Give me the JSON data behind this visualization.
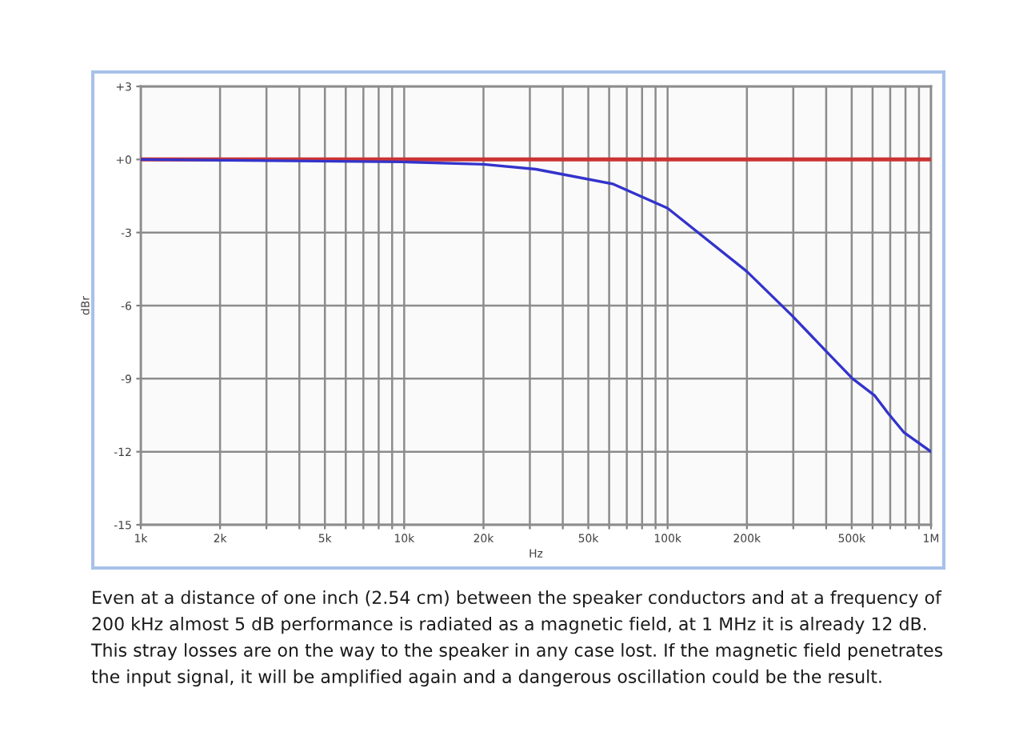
{
  "chart_data": {
    "type": "line",
    "xlabel": "Hz",
    "ylabel": "dBr",
    "log": "x",
    "grid": true,
    "line_style": "solid",
    "xlim": [
      1000,
      1000000
    ],
    "ylim": [
      -15,
      3
    ],
    "xticks": [
      {
        "value": 1000,
        "label": "1k"
      },
      {
        "value": 2000,
        "label": "2k"
      },
      {
        "value": 3000,
        "label": null
      },
      {
        "value": 4000,
        "label": null
      },
      {
        "value": 5000,
        "label": "5k"
      },
      {
        "value": 6000,
        "label": null
      },
      {
        "value": 7000,
        "label": null
      },
      {
        "value": 8000,
        "label": null
      },
      {
        "value": 9000,
        "label": null
      },
      {
        "value": 10000,
        "label": "10k"
      },
      {
        "value": 20000,
        "label": "20k"
      },
      {
        "value": 30000,
        "label": null
      },
      {
        "value": 40000,
        "label": null
      },
      {
        "value": 50000,
        "label": "50k"
      },
      {
        "value": 60000,
        "label": null
      },
      {
        "value": 70000,
        "label": null
      },
      {
        "value": 80000,
        "label": null
      },
      {
        "value": 90000,
        "label": null
      },
      {
        "value": 100000,
        "label": "100k"
      },
      {
        "value": 200000,
        "label": "200k"
      },
      {
        "value": 300000,
        "label": null
      },
      {
        "value": 400000,
        "label": null
      },
      {
        "value": 500000,
        "label": "500k"
      },
      {
        "value": 600000,
        "label": null
      },
      {
        "value": 700000,
        "label": null
      },
      {
        "value": 800000,
        "label": null
      },
      {
        "value": 900000,
        "label": null
      },
      {
        "value": 1000000,
        "label": "1M"
      }
    ],
    "yticks": [
      {
        "value": 3,
        "label": "+3"
      },
      {
        "value": 0,
        "label": "+0"
      },
      -3,
      -6,
      -9,
      -12,
      -15
    ],
    "series": [
      {
        "color": "#cc3333",
        "x": [
          1000,
          1000000
        ],
        "values": [
          0,
          0
        ]
      },
      {
        "color": "#3333cc",
        "x": [
          1000,
          10000,
          20000,
          31600,
          61800,
          100000,
          200000,
          296000,
          402000,
          504000,
          612000,
          685000,
          788000,
          1000000
        ],
        "values": [
          0,
          -0.1,
          -0.2,
          -0.4,
          -1.0,
          -2.0,
          -4.6,
          -6.4,
          -7.9,
          -9.0,
          -9.7,
          -10.4,
          -11.2,
          -12.0
        ]
      }
    ],
    "annotations": [
      "Even at a distance of one inch (2.54 cm) between the speaker conductors and at a frequency of\n200 kHz almost 5 dB performance is radiated as a magnetic field, at 1 MHz it is already 12 dB.\nThis stray losses are on the way to the speaker in any case lost. If the magnetic field penetrates\nthe input signal, it will be amplified again and a dangerous oscillation could be the result."
    ]
  }
}
